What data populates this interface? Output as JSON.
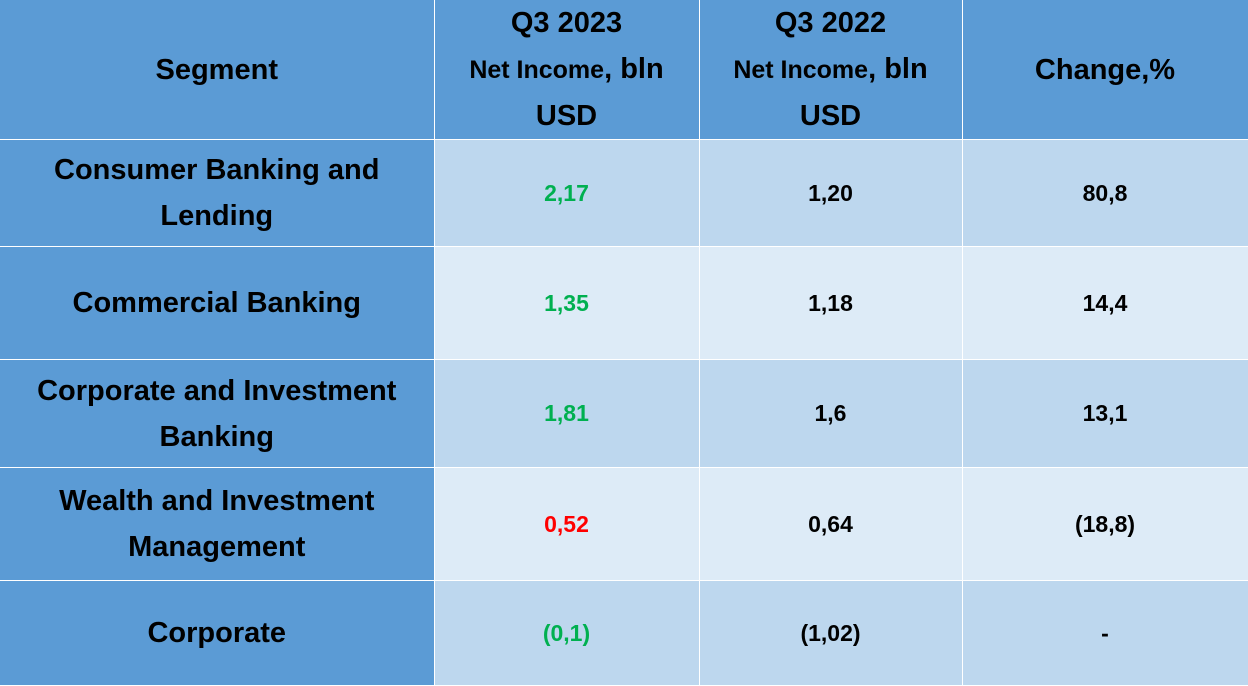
{
  "colors": {
    "header_bg": "#5b9bd5",
    "row_dark": "#bdd7ee",
    "row_light": "#ddebf7",
    "positive": "#00b050",
    "negative": "#ff0000"
  },
  "header": {
    "segment": "Segment",
    "q3_2023_title": "Q3 2023",
    "q3_2023_sub": "Net Income",
    "q3_2023_unit": ", bln USD",
    "q3_2022_title": "Q3 2022",
    "q3_2022_sub": "Net Income",
    "q3_2022_unit": ", bln USD",
    "change": "Change,%"
  },
  "rows": [
    {
      "segment": "Consumer Banking and Lending",
      "q3_2023": "2,17",
      "q3_2022": "1,20",
      "change": "80,8"
    },
    {
      "segment": "Commercial Banking",
      "q3_2023": "1,35",
      "q3_2022": "1,18",
      "change": "14,4"
    },
    {
      "segment": "Corporate and Investment Banking",
      "q3_2023": "1,81",
      "q3_2022": "1,6",
      "change": "13,1"
    },
    {
      "segment": "Wealth and Investment Management",
      "q3_2023": "0,52",
      "q3_2022": "0,64",
      "change": "(18,8)"
    },
    {
      "segment": "Corporate",
      "q3_2023": "(0,1)",
      "q3_2022": "(1,02)",
      "change": "-"
    }
  ]
}
